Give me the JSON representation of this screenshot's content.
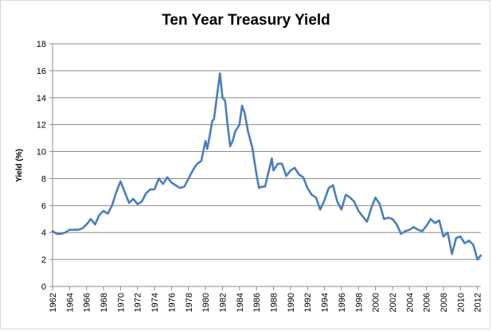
{
  "chart_data": {
    "type": "line",
    "title": "Ten Year Treasury Yield",
    "xlabel": "",
    "ylabel": "Yield (%)",
    "xlim": [
      1962,
      2012.4
    ],
    "ylim": [
      0,
      18
    ],
    "yticks": [
      0,
      2,
      4,
      6,
      8,
      10,
      12,
      14,
      16,
      18
    ],
    "xticks": [
      1962,
      1964,
      1966,
      1968,
      1970,
      1972,
      1974,
      1976,
      1978,
      1980,
      1982,
      1984,
      1986,
      1988,
      1990,
      1992,
      1994,
      1996,
      1998,
      2000,
      2002,
      2004,
      2006,
      2008,
      2010,
      2012
    ],
    "grid": "horizontal",
    "legend": "none",
    "line_color": "#4a7ebb",
    "series": [
      {
        "x": [
          1962.0,
          1962.5,
          1963.0,
          1963.5,
          1964.0,
          1964.5,
          1965.0,
          1965.5,
          1966.0,
          1966.5,
          1967.0,
          1967.5,
          1968.0,
          1968.5,
          1969.0,
          1969.5,
          1970.0,
          1970.5,
          1971.0,
          1971.5,
          1972.0,
          1972.5,
          1973.0,
          1973.5,
          1974.0,
          1974.5,
          1975.0,
          1975.5,
          1976.0,
          1976.5,
          1977.0,
          1977.5,
          1978.0,
          1978.5,
          1979.0,
          1979.5,
          1980.0,
          1980.2,
          1980.5,
          1980.8,
          1981.0,
          1981.3,
          1981.7,
          1982.0,
          1982.3,
          1982.6,
          1982.9,
          1983.2,
          1983.5,
          1983.8,
          1984.0,
          1984.3,
          1984.6,
          1985.0,
          1985.5,
          1986.0,
          1986.3,
          1986.6,
          1987.0,
          1987.5,
          1987.8,
          1988.0,
          1988.5,
          1989.0,
          1989.5,
          1990.0,
          1990.5,
          1991.0,
          1991.5,
          1992.0,
          1992.5,
          1993.0,
          1993.5,
          1994.0,
          1994.5,
          1995.0,
          1995.5,
          1996.0,
          1996.5,
          1997.0,
          1997.5,
          1998.0,
          1998.5,
          1999.0,
          1999.5,
          2000.0,
          2000.5,
          2001.0,
          2001.5,
          2002.0,
          2002.5,
          2003.0,
          2003.5,
          2004.0,
          2004.5,
          2005.0,
          2005.5,
          2006.0,
          2006.5,
          2007.0,
          2007.5,
          2008.0,
          2008.5,
          2009.0,
          2009.5,
          2010.0,
          2010.5,
          2011.0,
          2011.5,
          2012.0,
          2012.4
        ],
        "y": [
          4.1,
          3.9,
          3.9,
          4.0,
          4.2,
          4.2,
          4.2,
          4.3,
          4.6,
          5.0,
          4.6,
          5.3,
          5.6,
          5.4,
          6.0,
          7.0,
          7.8,
          7.0,
          6.2,
          6.5,
          6.1,
          6.3,
          6.9,
          7.2,
          7.2,
          8.0,
          7.6,
          8.1,
          7.7,
          7.5,
          7.3,
          7.4,
          8.0,
          8.6,
          9.1,
          9.3,
          10.8,
          10.2,
          11.2,
          12.3,
          12.4,
          13.9,
          15.8,
          14.0,
          13.8,
          12.0,
          10.4,
          10.8,
          11.5,
          11.8,
          12.0,
          13.4,
          12.9,
          11.5,
          10.3,
          8.3,
          7.3,
          7.4,
          7.4,
          8.7,
          9.5,
          8.6,
          9.1,
          9.1,
          8.2,
          8.6,
          8.8,
          8.3,
          8.1,
          7.3,
          6.8,
          6.6,
          5.7,
          6.4,
          7.3,
          7.5,
          6.3,
          5.7,
          6.8,
          6.6,
          6.3,
          5.6,
          5.2,
          4.8,
          5.8,
          6.6,
          6.1,
          5.0,
          5.1,
          5.0,
          4.6,
          3.9,
          4.1,
          4.2,
          4.4,
          4.2,
          4.1,
          4.5,
          5.0,
          4.7,
          4.9,
          3.7,
          4.0,
          2.4,
          3.6,
          3.7,
          3.2,
          3.4,
          3.1,
          2.0,
          2.3
        ]
      }
    ]
  }
}
